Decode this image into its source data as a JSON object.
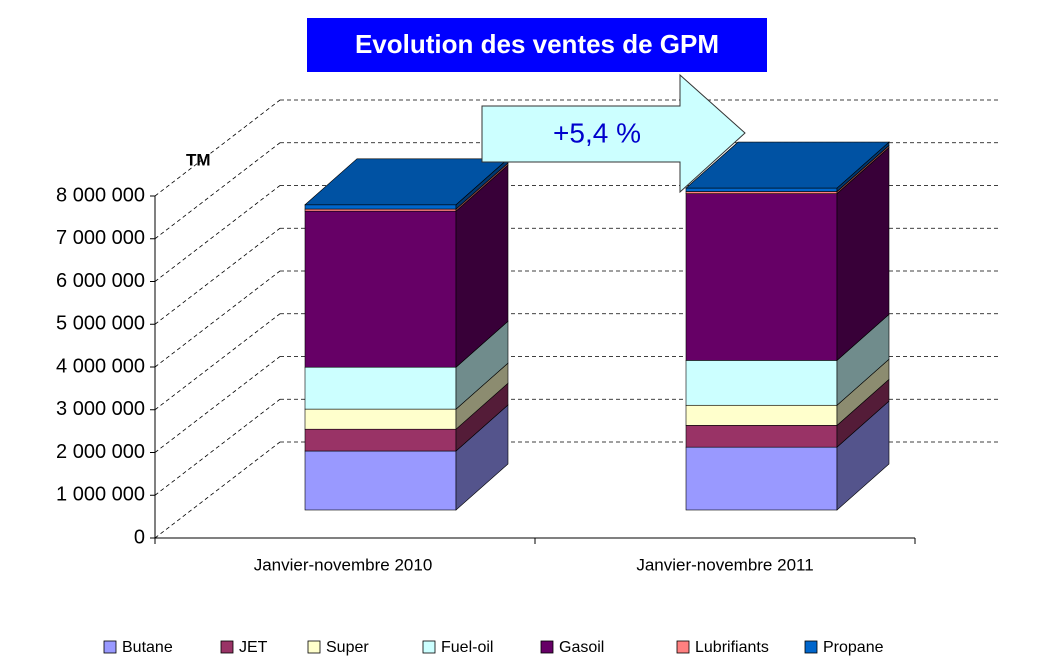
{
  "chart_data": {
    "type": "bar3d-stacked",
    "title": "Evolution des ventes de GPM",
    "ylabel": "TM",
    "annotation": "+5,4 %",
    "categories": [
      "Janvier-novembre 2010",
      "Janvier-novembre 2011"
    ],
    "series": [
      {
        "name": "Butane",
        "color": "#9999ff",
        "values": [
          1380000,
          1470000
        ]
      },
      {
        "name": "JET",
        "color": "#993366",
        "values": [
          510000,
          510000
        ]
      },
      {
        "name": "Super",
        "color": "#ffffcc",
        "values": [
          470000,
          470000
        ]
      },
      {
        "name": "Fuel-oil",
        "color": "#ccffff",
        "values": [
          980000,
          1050000
        ]
      },
      {
        "name": "Gasoil",
        "color": "#660066",
        "values": [
          3650000,
          3900000
        ]
      },
      {
        "name": "Lubrifiants",
        "color": "#ff8080",
        "values": [
          50000,
          50000
        ]
      },
      {
        "name": "Propane",
        "color": "#0066cc",
        "values": [
          100000,
          80000
        ]
      }
    ],
    "ylim": [
      0,
      8000000
    ],
    "yticks": [
      0,
      {
        "value": 1000000,
        "label": "1 000 000"
      },
      {
        "value": 2000000,
        "label": "2 000 000"
      },
      {
        "value": 3000000,
        "label": "3 000 000"
      },
      {
        "value": 4000000,
        "label": "4 000 000"
      },
      {
        "value": 5000000,
        "label": "5 000 000"
      },
      {
        "value": 6000000,
        "label": "6 000 000"
      },
      {
        "value": 7000000,
        "label": "7 000 000"
      },
      {
        "value": 8000000,
        "label": "8 000 000"
      }
    ],
    "grid": true,
    "legend": "bottom"
  }
}
